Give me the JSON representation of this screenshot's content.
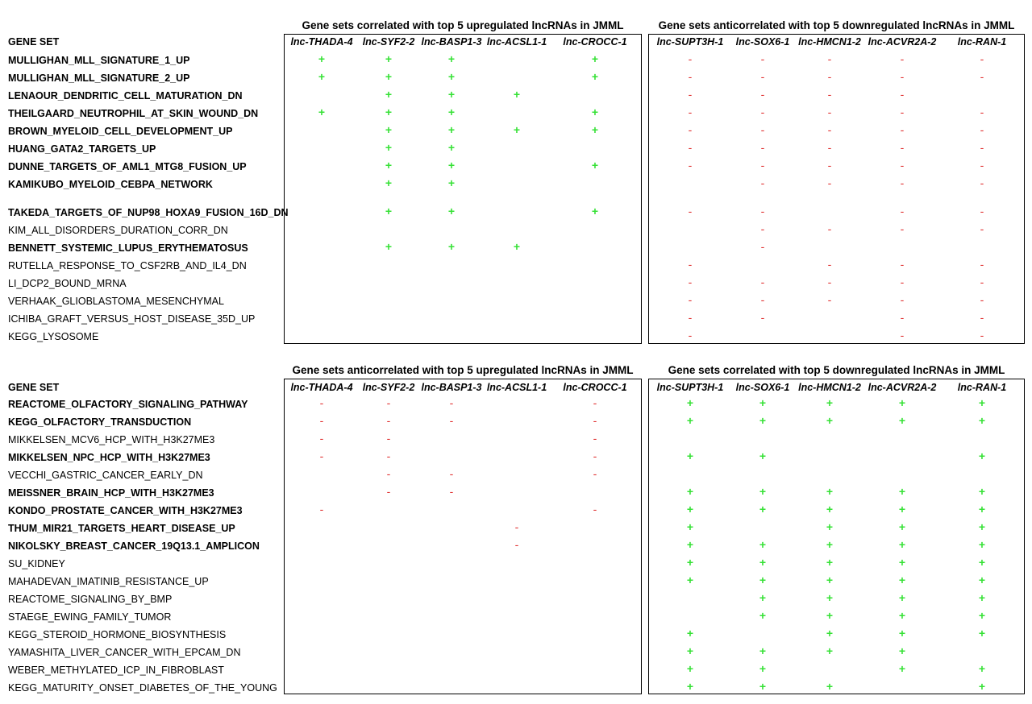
{
  "gene_set_header": "GENE SET",
  "lncrnas_up": [
    "lnc-THADA-4",
    "lnc-SYF2-2",
    "lnc-BASP1-3",
    "lnc-ACSL1-1",
    "lnc-CROCC-1"
  ],
  "lncrnas_down": [
    "lnc-SUPT3H-1",
    "lnc-SOX6-1",
    "lnc-HMCN1-2",
    "lnc-ACVR2A-2",
    "lnc-RAN-1"
  ],
  "colors": {
    "plus": "#35e135",
    "minus": "#e03030"
  },
  "panels": [
    {
      "left_title": "Gene sets correlated with top 5 upregulated lncRNAs in JMML",
      "right_title": "Gene sets anticorrelated with top 5 downregulated lncRNAs in JMML",
      "rows": [
        {
          "name": "MULLIGHAN_MLL_SIGNATURE_1_UP",
          "bold": true,
          "left": "+++.+",
          "right": "-----"
        },
        {
          "name": "MULLIGHAN_MLL_SIGNATURE_2_UP",
          "bold": true,
          "left": "+++.+",
          "right": "-----"
        },
        {
          "name": "LENAOUR_DENDRITIC_CELL_MATURATION_DN",
          "bold": true,
          "left": ".+++.",
          "right": "----."
        },
        {
          "name": "THEILGAARD_NEUTROPHIL_AT_SKIN_WOUND_DN",
          "bold": true,
          "left": "+++.+",
          "right": "-----"
        },
        {
          "name": "BROWN_MYELOID_CELL_DEVELOPMENT_UP",
          "bold": true,
          "left": ".++++",
          "right": "-----"
        },
        {
          "name": "HUANG_GATA2_TARGETS_UP",
          "bold": true,
          "left": ".++..",
          "right": "-----"
        },
        {
          "name": "DUNNE_TARGETS_OF_AML1_MTG8_FUSION_UP",
          "bold": true,
          "left": ".++.+",
          "right": "-----"
        },
        {
          "name": "KAMIKUBO_MYELOID_CEBPA_NETWORK",
          "bold": true,
          "left": ".++..",
          "right": ".----"
        },
        {
          "name": "TAKEDA_TARGETS_OF_NUP98_HOXA9_FUSION_16D_DN",
          "bold": true,
          "left": ".++.+",
          "right": "--.--"
        },
        {
          "name": "KIM_ALL_DISORDERS_DURATION_CORR_DN",
          "bold": false,
          "left": ".....",
          "right": ".----"
        },
        {
          "name": "BENNETT_SYSTEMIC_LUPUS_ERYTHEMATOSUS",
          "bold": true,
          "left": ".+++.",
          "right": ".-..."
        },
        {
          "name": "RUTELLA_RESPONSE_TO_CSF2RB_AND_IL4_DN",
          "bold": false,
          "left": ".....",
          "right": "-.---"
        },
        {
          "name": "LI_DCP2_BOUND_MRNA",
          "bold": false,
          "left": ".....",
          "right": "-----"
        },
        {
          "name": "VERHAAK_GLIOBLASTOMA_MESENCHYMAL",
          "bold": false,
          "left": ".....",
          "right": "-----"
        },
        {
          "name": "ICHIBA_GRAFT_VERSUS_HOST_DISEASE_35D_UP",
          "bold": false,
          "left": ".....",
          "right": "--.--"
        },
        {
          "name": "KEGG_LYSOSOME",
          "bold": false,
          "left": ".....",
          "right": "-..--"
        }
      ]
    },
    {
      "left_title": "Gene sets anticorrelated with top 5 upregulated lncRNAs in JMML",
      "right_title": "Gene sets correlated with top 5 downregulated lncRNAs in JMML",
      "rows": [
        {
          "name": "REACTOME_OLFACTORY_SIGNALING_PATHWAY",
          "bold": true,
          "left": "---.-",
          "right": "+++++"
        },
        {
          "name": "KEGG_OLFACTORY_TRANSDUCTION",
          "bold": true,
          "left": "---.-",
          "right": "+++++"
        },
        {
          "name": "MIKKELSEN_MCV6_HCP_WITH_H3K27ME3",
          "bold": false,
          "left": "--..-",
          "right": "....."
        },
        {
          "name": "MIKKELSEN_NPC_HCP_WITH_H3K27ME3",
          "bold": true,
          "left": "--..-",
          "right": "++..+"
        },
        {
          "name": "VECCHI_GASTRIC_CANCER_EARLY_DN",
          "bold": false,
          "left": ".--.-",
          "right": "....."
        },
        {
          "name": "MEISSNER_BRAIN_HCP_WITH_H3K27ME3",
          "bold": true,
          "left": ".--..",
          "right": "+++++"
        },
        {
          "name": "KONDO_PROSTATE_CANCER_WITH_H3K27ME3",
          "bold": true,
          "left": "-...-",
          "right": "+++++"
        },
        {
          "name": "THUM_MIR21_TARGETS_HEART_DISEASE_UP",
          "bold": true,
          "left": "...-.",
          "right": "+.+++"
        },
        {
          "name": "NIKOLSKY_BREAST_CANCER_19Q13.1_AMPLICON",
          "bold": true,
          "left": "...-.",
          "right": "+++++"
        },
        {
          "name": "SU_KIDNEY",
          "bold": false,
          "left": ".....",
          "right": "+++++"
        },
        {
          "name": "MAHADEVAN_IMATINIB_RESISTANCE_UP",
          "bold": false,
          "left": ".....",
          "right": "+++++"
        },
        {
          "name": "REACTOME_SIGNALING_BY_BMP",
          "bold": false,
          "left": ".....",
          "right": ".++++"
        },
        {
          "name": "STAEGE_EWING_FAMILY_TUMOR",
          "bold": false,
          "left": ".....",
          "right": ".++++"
        },
        {
          "name": "KEGG_STEROID_HORMONE_BIOSYNTHESIS",
          "bold": false,
          "left": ".....",
          "right": "+.+++"
        },
        {
          "name": "YAMASHITA_LIVER_CANCER_WITH_EPCAM_DN",
          "bold": false,
          "left": ".....",
          "right": "++++."
        },
        {
          "name": "WEBER_METHYLATED_ICP_IN_FIBROBLAST",
          "bold": false,
          "left": ".....",
          "right": "++.++"
        },
        {
          "name": "KEGG_MATURITY_ONSET_DIABETES_OF_THE_YOUNG",
          "bold": false,
          "left": ".....",
          "right": "+++.+"
        }
      ]
    }
  ]
}
